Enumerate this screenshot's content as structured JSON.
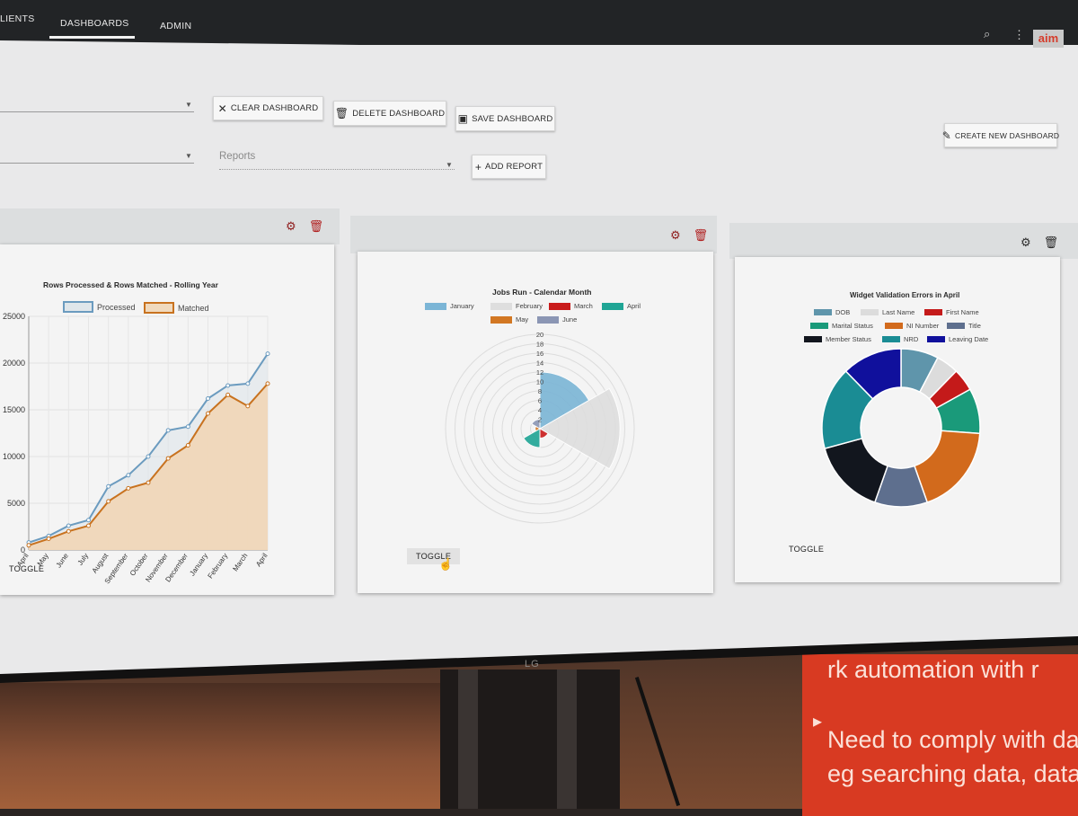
{
  "nav": {
    "items": [
      {
        "label": "LIENTS"
      },
      {
        "label": "DASHBOARDS"
      },
      {
        "label": "ADMIN"
      }
    ],
    "logo_text": "aim"
  },
  "toolbar": {
    "clear_label": "CLEAR DASHBOARD",
    "delete_label": "DELETE DASHBOARD",
    "save_label": "SAVE DASHBOARD",
    "create_label": "CREATE NEW DASHBOARD",
    "reports_label": "Reports",
    "add_report_label": "ADD REPORT"
  },
  "widgets": {
    "toggle_label": "TOGGLE"
  },
  "chart_data": [
    {
      "type": "area",
      "title": "Rows Processed & Rows Matched - Rolling Year",
      "categories": [
        "April",
        "May",
        "June",
        "July",
        "August",
        "September",
        "October",
        "November",
        "December",
        "January",
        "February",
        "March",
        "April"
      ],
      "ylim": [
        0,
        25000
      ],
      "yticks": [
        "0",
        "5000",
        "10000",
        "15000",
        "20000",
        "25000"
      ],
      "legend": "top",
      "grid": true,
      "series": [
        {
          "name": "Processed",
          "color": "#6b9bbf",
          "values": [
            800,
            1500,
            2600,
            3200,
            6800,
            8000,
            10000,
            12800,
            13200,
            16200,
            17600,
            17800,
            21000
          ]
        },
        {
          "name": "Matched",
          "color": "#c8721f",
          "values": [
            500,
            1200,
            2000,
            2600,
            5200,
            6600,
            7200,
            9800,
            11200,
            14600,
            16600,
            15400,
            17800
          ]
        }
      ]
    },
    {
      "type": "polar",
      "title": "Jobs Run - Calendar Month",
      "rmax": 20,
      "rticks": [
        "2",
        "4",
        "6",
        "8",
        "10",
        "12",
        "14",
        "16",
        "18",
        "20"
      ],
      "legend": "top",
      "categories": [
        "January",
        "February",
        "March",
        "April",
        "May",
        "June"
      ],
      "colors": [
        "#7bb5d6",
        "#dedede",
        "#c91b1b",
        "#1fa595",
        "#d27722",
        "#8b96b4"
      ],
      "values": [
        12,
        17,
        2,
        4,
        1,
        2
      ]
    },
    {
      "type": "pie",
      "title": "Widget Validation Errors in April",
      "legend": "top",
      "categories": [
        "DOB",
        "Last Name",
        "First Name",
        "Marital Status",
        "NI Number",
        "Title",
        "Member Status",
        "NRD",
        "Leaving Date"
      ],
      "colors": [
        "#5f95ab",
        "#dcdcdc",
        "#c41a1a",
        "#1a9a7a",
        "#d26a1c",
        "#5e6f8e",
        "#12161e",
        "#1a8c94",
        "#10109c"
      ],
      "values": [
        5,
        3,
        3,
        6,
        12,
        7,
        10,
        11,
        8
      ]
    }
  ],
  "background": {
    "slide_lines": [
      "rk automation with r",
      "Need to comply with da",
      "eg searching data, data"
    ],
    "bezel_brand": "LG"
  }
}
